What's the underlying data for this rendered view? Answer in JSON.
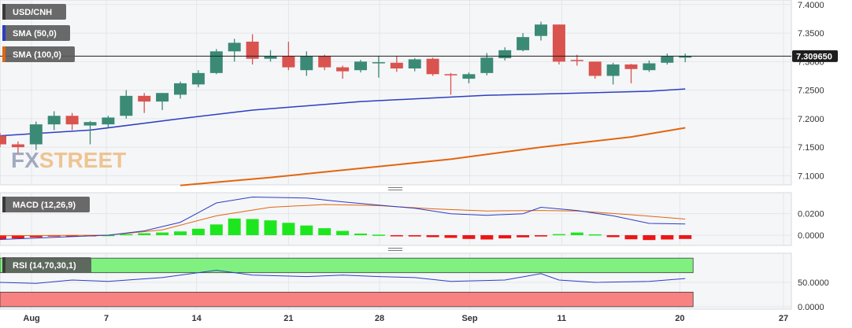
{
  "chart_data": [
    {
      "type": "candlestick",
      "title": "USD/CNH",
      "legend": [
        {
          "name": "SMA (50,0)",
          "color": "#2c3ec0"
        },
        {
          "name": "SMA (100,0)",
          "color": "#e2650f"
        }
      ],
      "watermark": "FXSTREET",
      "y_ticks": [
        "7.1000",
        "7.1500",
        "7.2000",
        "7.2500",
        "7.3000",
        "7.3500",
        "7.4000"
      ],
      "ylim": [
        7.084,
        7.408
      ],
      "last_price": "7.309650",
      "colors": {
        "up": "#3b8a76",
        "down": "#d9534f",
        "sma50": "#2c3ec0",
        "sma100": "#e2650f",
        "last_label": "#1e1e1e"
      },
      "x_labels": [
        {
          "label": "Aug",
          "index": 1.75
        },
        {
          "label": "7",
          "index": 5.9
        },
        {
          "label": "14",
          "index": 10.9
        },
        {
          "label": "21",
          "index": 16
        },
        {
          "label": "28",
          "index": 21.05
        },
        {
          "label": "Sep",
          "index": 26.05
        },
        {
          "label": "11",
          "index": 31.15
        },
        {
          "label": "20",
          "index": 37.7
        },
        {
          "label": "27",
          "index": 43.45
        }
      ],
      "candles": [
        {
          "date": "Jul 28",
          "open": 7.17,
          "high": 7.175,
          "low": 7.15,
          "close": 7.155
        },
        {
          "date": "Jul 31",
          "open": 7.155,
          "high": 7.16,
          "low": 7.14,
          "close": 7.15
        },
        {
          "date": "Aug 1",
          "open": 7.155,
          "high": 7.195,
          "low": 7.145,
          "close": 7.19
        },
        {
          "date": "Aug 2",
          "open": 7.19,
          "high": 7.213,
          "low": 7.18,
          "close": 7.205
        },
        {
          "date": "Aug 3",
          "open": 7.205,
          "high": 7.21,
          "low": 7.18,
          "close": 7.19
        },
        {
          "date": "Aug 4",
          "open": 7.188,
          "high": 7.196,
          "low": 7.155,
          "close": 7.194
        },
        {
          "date": "Aug 7",
          "open": 7.19,
          "high": 7.205,
          "low": 7.185,
          "close": 7.202
        },
        {
          "date": "Aug 8",
          "open": 7.205,
          "high": 7.25,
          "low": 7.2,
          "close": 7.24
        },
        {
          "date": "Aug 9",
          "open": 7.24,
          "high": 7.245,
          "low": 7.21,
          "close": 7.23
        },
        {
          "date": "Aug 10",
          "open": 7.23,
          "high": 7.245,
          "low": 7.215,
          "close": 7.245
        },
        {
          "date": "Aug 11",
          "open": 7.242,
          "high": 7.265,
          "low": 7.235,
          "close": 7.262
        },
        {
          "date": "Aug 14",
          "open": 7.26,
          "high": 7.285,
          "low": 7.255,
          "close": 7.28
        },
        {
          "date": "Aug 15",
          "open": 7.28,
          "high": 7.322,
          "low": 7.278,
          "close": 7.318
        },
        {
          "date": "Aug 16",
          "open": 7.318,
          "high": 7.34,
          "low": 7.3,
          "close": 7.333
        },
        {
          "date": "Aug 17",
          "open": 7.335,
          "high": 7.348,
          "low": 7.295,
          "close": 7.305
        },
        {
          "date": "Aug 18",
          "open": 7.305,
          "high": 7.32,
          "low": 7.3,
          "close": 7.31
        },
        {
          "date": "Aug 21",
          "open": 7.31,
          "high": 7.335,
          "low": 7.285,
          "close": 7.29
        },
        {
          "date": "Aug 22",
          "open": 7.285,
          "high": 7.318,
          "low": 7.275,
          "close": 7.31
        },
        {
          "date": "Aug 23",
          "open": 7.31,
          "high": 7.312,
          "low": 7.285,
          "close": 7.29
        },
        {
          "date": "Aug 24",
          "open": 7.29,
          "high": 7.293,
          "low": 7.27,
          "close": 7.283
        },
        {
          "date": "Aug 25",
          "open": 7.285,
          "high": 7.303,
          "low": 7.281,
          "close": 7.3
        },
        {
          "date": "Aug 28",
          "open": 7.297,
          "high": 7.309,
          "low": 7.272,
          "close": 7.299
        },
        {
          "date": "Aug 29",
          "open": 7.298,
          "high": 7.31,
          "low": 7.282,
          "close": 7.288
        },
        {
          "date": "Aug 30",
          "open": 7.288,
          "high": 7.306,
          "low": 7.283,
          "close": 7.304
        },
        {
          "date": "Aug 31",
          "open": 7.305,
          "high": 7.307,
          "low": 7.275,
          "close": 7.278
        },
        {
          "date": "Sep 1",
          "open": 7.278,
          "high": 7.28,
          "low": 7.242,
          "close": 7.276
        },
        {
          "date": "Sep 4",
          "open": 7.27,
          "high": 7.281,
          "low": 7.262,
          "close": 7.278
        },
        {
          "date": "Sep 5",
          "open": 7.28,
          "high": 7.315,
          "low": 7.276,
          "close": 7.307
        },
        {
          "date": "Sep 6",
          "open": 7.306,
          "high": 7.325,
          "low": 7.302,
          "close": 7.32
        },
        {
          "date": "Sep 7",
          "open": 7.32,
          "high": 7.35,
          "low": 7.318,
          "close": 7.343
        },
        {
          "date": "Sep 8",
          "open": 7.345,
          "high": 7.37,
          "low": 7.337,
          "close": 7.365
        },
        {
          "date": "Sep 11",
          "open": 7.365,
          "high": 7.365,
          "low": 7.295,
          "close": 7.3
        },
        {
          "date": "Sep 12",
          "open": 7.303,
          "high": 7.312,
          "low": 7.293,
          "close": 7.302
        },
        {
          "date": "Sep 13",
          "open": 7.3,
          "high": 7.3,
          "low": 7.27,
          "close": 7.275
        },
        {
          "date": "Sep 14",
          "open": 7.275,
          "high": 7.298,
          "low": 7.26,
          "close": 7.295
        },
        {
          "date": "Sep 15",
          "open": 7.295,
          "high": 7.296,
          "low": 7.262,
          "close": 7.287
        },
        {
          "date": "Sep 18",
          "open": 7.285,
          "high": 7.302,
          "low": 7.282,
          "close": 7.297
        },
        {
          "date": "Sep 19",
          "open": 7.298,
          "high": 7.314,
          "low": 7.295,
          "close": 7.309
        },
        {
          "date": "Sep 20",
          "open": 7.307,
          "high": 7.314,
          "low": 7.299,
          "close": 7.3097
        }
      ],
      "sma50": [
        [
          0,
          7.17
        ],
        [
          5,
          7.18
        ],
        [
          10,
          7.2
        ],
        [
          14,
          7.215
        ],
        [
          20,
          7.23
        ],
        [
          27,
          7.241
        ],
        [
          31,
          7.244
        ],
        [
          36,
          7.248
        ],
        [
          38,
          7.252
        ]
      ],
      "sma100": [
        [
          10,
          7.083
        ],
        [
          15,
          7.097
        ],
        [
          20,
          7.113
        ],
        [
          25,
          7.129
        ],
        [
          30,
          7.15
        ],
        [
          35,
          7.168
        ],
        [
          38,
          7.184
        ]
      ]
    },
    {
      "type": "bar",
      "title": "MACD (12,26,9)",
      "y_ticks": [
        "0.0200",
        "0.0000"
      ],
      "ylim": [
        -0.0095,
        0.0395
      ],
      "colors": {
        "pos": "#1ee61e",
        "neg": "#ee1515",
        "macd": "#2c3ec0",
        "signal": "#e2650f"
      },
      "histogram": [
        -0.004,
        -0.003,
        -0.002,
        -0.0012,
        -0.0006,
        -0.0002,
        0.0002,
        0.001,
        0.0018,
        0.0025,
        0.0035,
        0.006,
        0.01,
        0.0155,
        0.015,
        0.0138,
        0.0115,
        0.009,
        0.0065,
        0.004,
        0.0015,
        0.0005,
        -0.0005,
        -0.0012,
        -0.0018,
        -0.0025,
        -0.0035,
        -0.004,
        -0.003,
        -0.002,
        -0.0012,
        0.001,
        0.0025,
        0.0008,
        -0.0018,
        -0.0038,
        -0.0045,
        -0.004,
        -0.0035
      ],
      "macd": [
        [
          0,
          -0.004
        ],
        [
          3,
          -0.002
        ],
        [
          6,
          0.0
        ],
        [
          8,
          0.004
        ],
        [
          10,
          0.012
        ],
        [
          12,
          0.03
        ],
        [
          14,
          0.0355
        ],
        [
          17,
          0.0345
        ],
        [
          19,
          0.031
        ],
        [
          21,
          0.028
        ],
        [
          23,
          0.025
        ],
        [
          25,
          0.02
        ],
        [
          27,
          0.0185
        ],
        [
          29,
          0.02
        ],
        [
          30,
          0.026
        ],
        [
          32,
          0.023
        ],
        [
          34,
          0.018
        ],
        [
          36,
          0.011
        ],
        [
          38,
          0.0105
        ]
      ],
      "signal": [
        [
          0,
          -0.0005
        ],
        [
          6,
          0.0
        ],
        [
          9,
          0.005
        ],
        [
          12,
          0.018
        ],
        [
          15,
          0.026
        ],
        [
          18,
          0.0285
        ],
        [
          21,
          0.0275
        ],
        [
          24,
          0.0245
        ],
        [
          27,
          0.0225
        ],
        [
          30,
          0.023
        ],
        [
          32,
          0.0225
        ],
        [
          35,
          0.019
        ],
        [
          38,
          0.015
        ]
      ]
    },
    {
      "type": "line",
      "title": "RSI (14,70,30,1)",
      "y_ticks": [
        "50.0000",
        "0.0000"
      ],
      "ylim": [
        -5,
        110
      ],
      "bands": {
        "overbought": [
          70,
          100
        ],
        "oversold": [
          0,
          30
        ],
        "ob_color": "#80f080",
        "os_color": "#f88282"
      },
      "color": "#2c3ec0",
      "values": [
        [
          0,
          50
        ],
        [
          2,
          48
        ],
        [
          4,
          55
        ],
        [
          6,
          52
        ],
        [
          9,
          60
        ],
        [
          12,
          75
        ],
        [
          14,
          65
        ],
        [
          17,
          62
        ],
        [
          19,
          65
        ],
        [
          21,
          62
        ],
        [
          23,
          60
        ],
        [
          25,
          52
        ],
        [
          28,
          55
        ],
        [
          30,
          68
        ],
        [
          31,
          55
        ],
        [
          33,
          50
        ],
        [
          36,
          52
        ],
        [
          38,
          58
        ]
      ]
    }
  ]
}
